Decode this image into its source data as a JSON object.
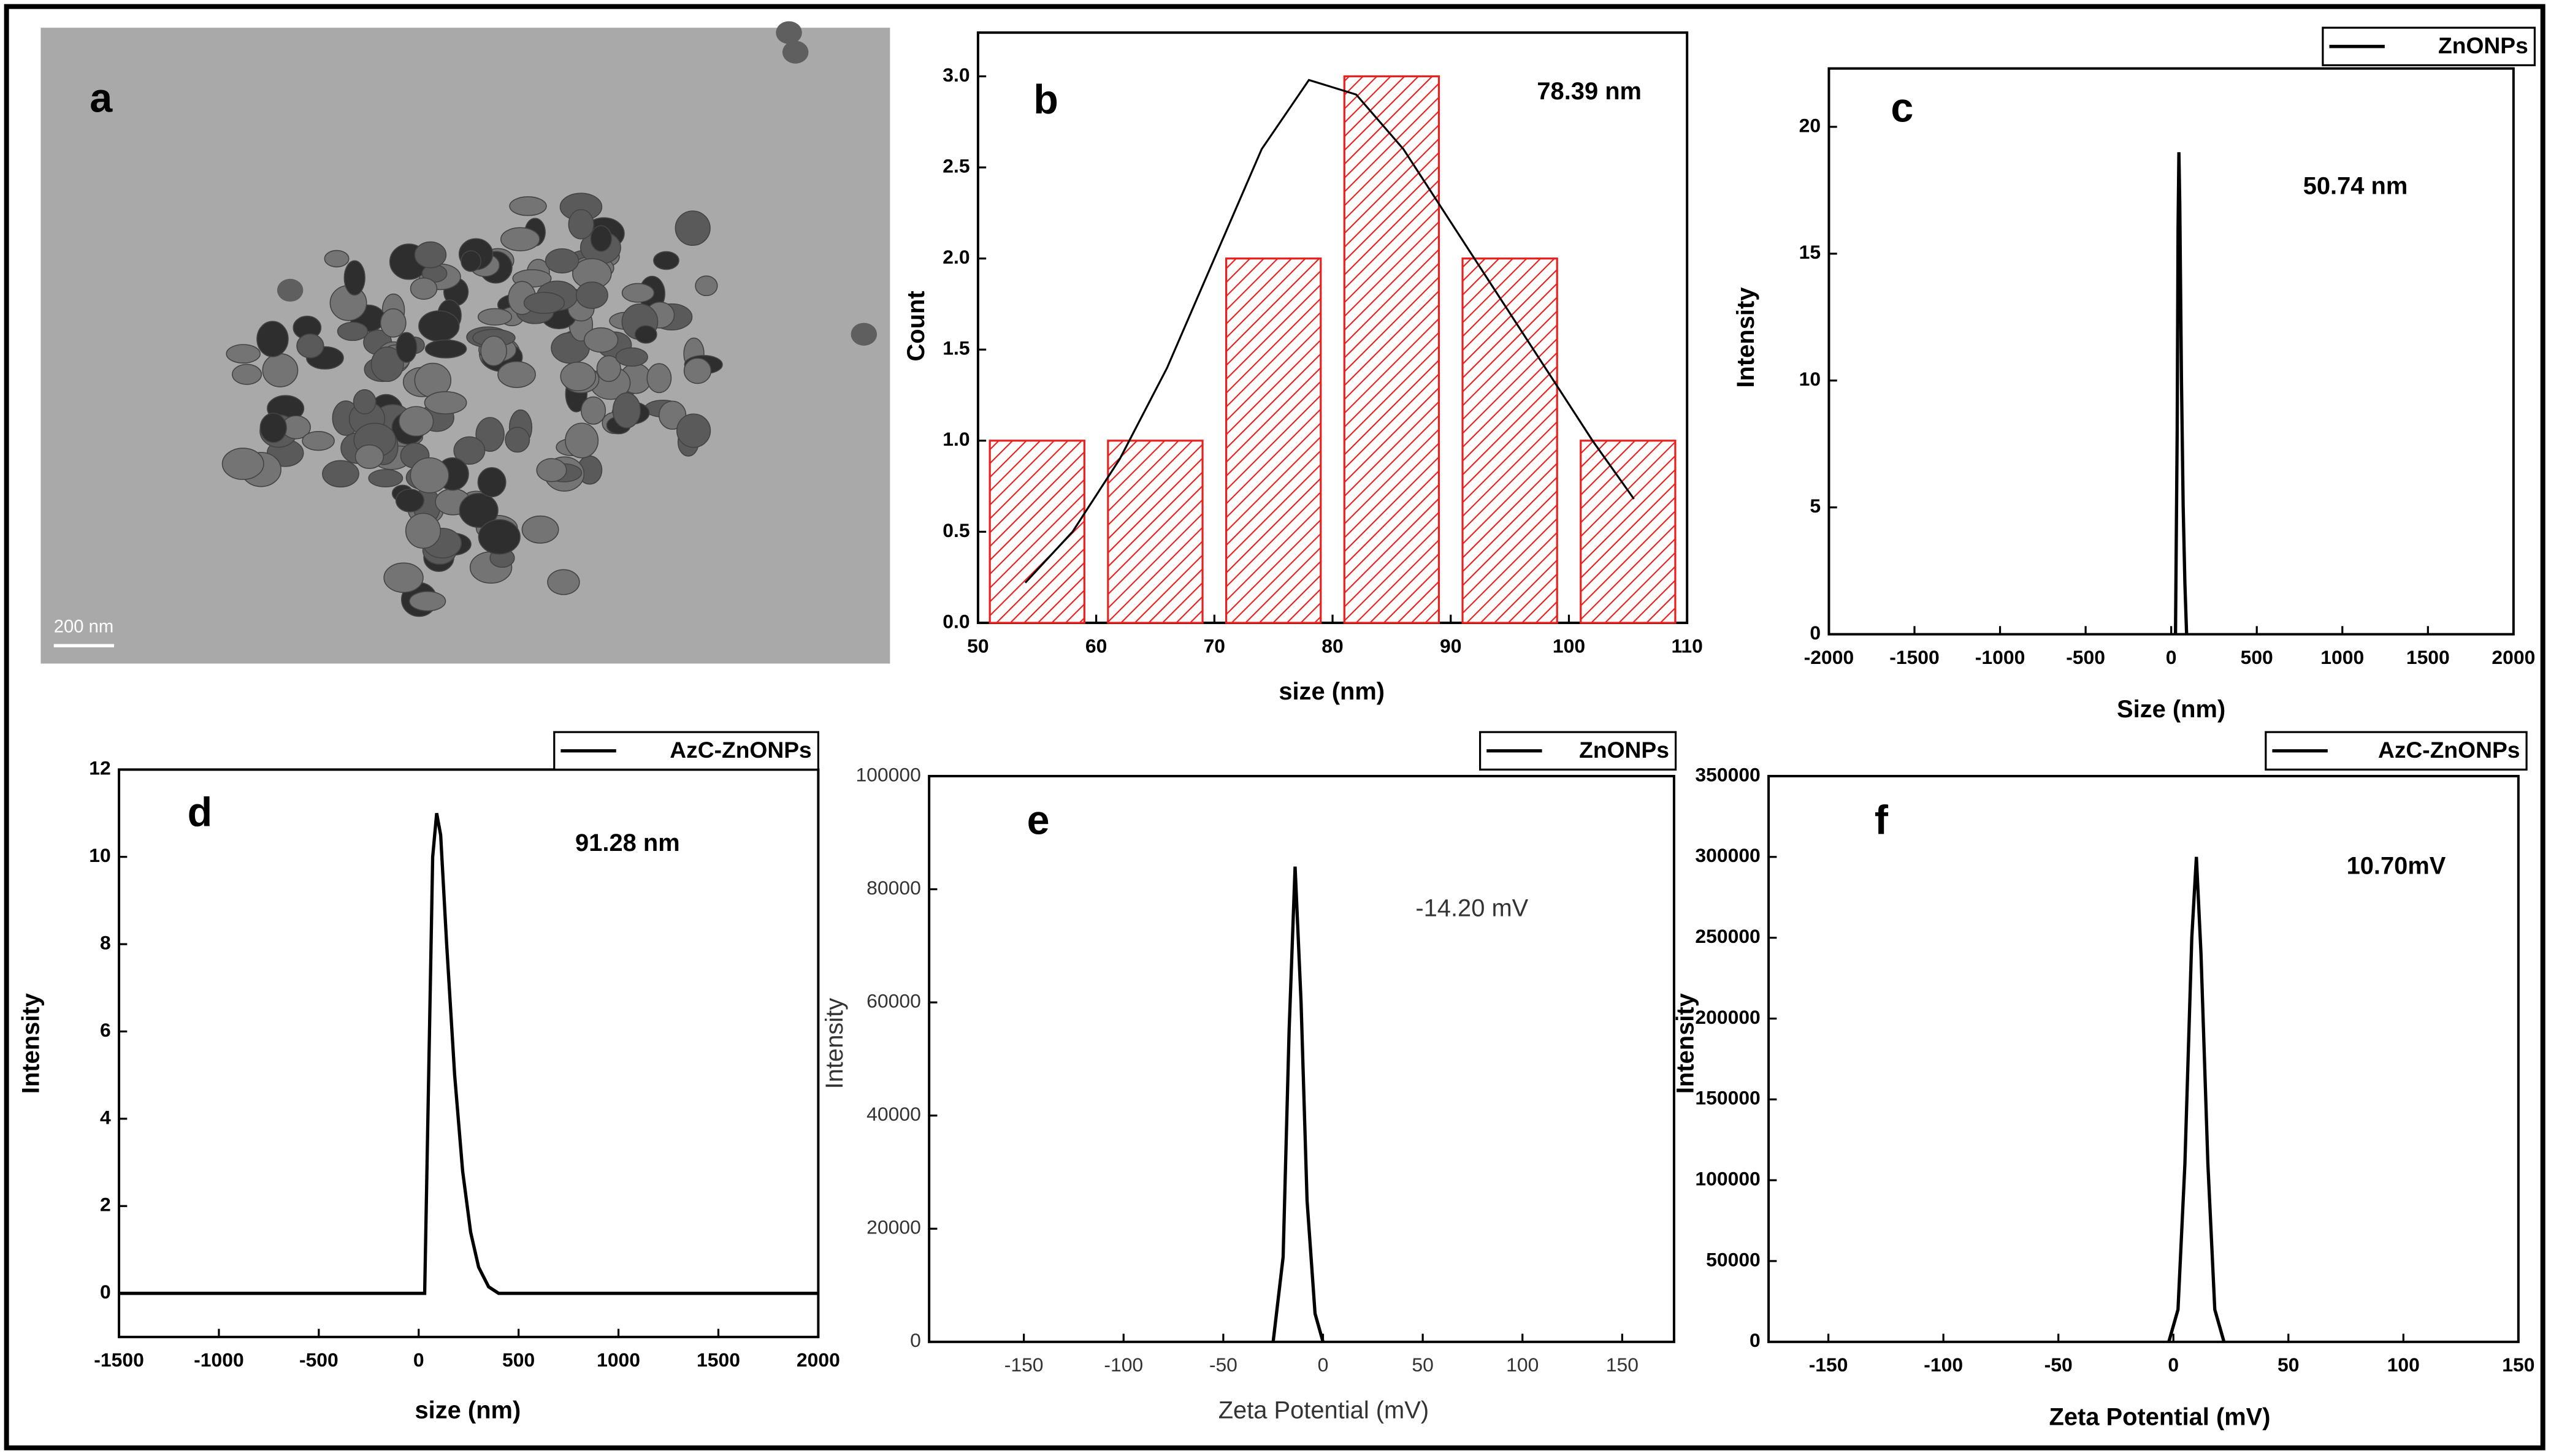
{
  "chart_data": [
    {
      "type": "image",
      "panel_label": "a",
      "scale_bar": "200 nm"
    },
    {
      "type": "histogram",
      "panel_label": "b",
      "annotation": "78.39 nm",
      "x_label": "size (nm)",
      "y_label": "Count",
      "bins": [
        50,
        60,
        70,
        80,
        90,
        100,
        110
      ],
      "values": [
        1,
        1,
        2,
        3,
        2,
        1
      ],
      "color": "#e8201e",
      "fit": {
        "x": [
          54,
          58,
          62,
          66,
          70,
          74,
          78,
          82,
          86,
          90,
          94,
          98,
          102,
          105.5
        ],
        "values": [
          0.22,
          0.5,
          0.9,
          1.4,
          2.0,
          2.6,
          2.98,
          2.9,
          2.6,
          2.2,
          1.8,
          1.4,
          1.0,
          0.68
        ],
        "color": "#000000"
      },
      "xlim": [
        50,
        110
      ],
      "ylim": [
        0,
        3.24
      ],
      "xticks": [
        50,
        60,
        70,
        80,
        90,
        100,
        110
      ],
      "yticks": [
        {
          "value": 0,
          "label": "0.0"
        },
        0.5,
        {
          "value": 1,
          "label": "1.0"
        },
        1.5,
        {
          "value": 2,
          "label": "2.0"
        },
        2.5,
        {
          "value": 3,
          "label": "3.0"
        }
      ]
    },
    {
      "type": "line",
      "panel_label": "c",
      "annotation": "50.74 nm",
      "x_label": "Size (nm)",
      "y_label": "Intensity",
      "x": [
        25,
        35,
        40,
        45,
        50,
        60,
        70,
        80,
        90
      ],
      "series": [
        {
          "name": "ZnONPs",
          "color": "#000000",
          "values": [
            0,
            8,
            16,
            19,
            17,
            10,
            5,
            2,
            0
          ]
        }
      ],
      "xlim": [
        -2000,
        2000
      ],
      "ylim": [
        0,
        22.3
      ],
      "xticks": [
        -2000,
        -1500,
        -1000,
        -500,
        0,
        500,
        1000,
        1500,
        2000
      ],
      "yticks": [
        0,
        5,
        10,
        15,
        20
      ]
    },
    {
      "type": "line",
      "panel_label": "d",
      "annotation": "91.28 nm",
      "x_label": "size (nm)",
      "y_label": "Intensity",
      "x": [
        -1500,
        30,
        50,
        70,
        90,
        110,
        140,
        180,
        220,
        260,
        300,
        350,
        400,
        2000
      ],
      "series": [
        {
          "name": "AzC-ZnONPs",
          "color": "#000000",
          "values": [
            0,
            0,
            5,
            10,
            11,
            10.5,
            8,
            5,
            2.8,
            1.4,
            0.6,
            0.15,
            0,
            0
          ]
        }
      ],
      "xlim": [
        -1500,
        2000
      ],
      "ylim": [
        -1,
        12
      ],
      "xticks": [
        -1500,
        -1000,
        -500,
        0,
        500,
        1000,
        1500,
        2000
      ],
      "yticks": [
        0,
        2,
        4,
        6,
        8,
        10,
        12
      ]
    },
    {
      "type": "line",
      "panel_label": "e",
      "annotation": "-14.20 mV",
      "x_label": "Zeta Potential (mV)",
      "y_label": "Intensity",
      "x": [
        -25,
        -20,
        -17,
        -14,
        -11,
        -8,
        -4,
        0
      ],
      "series": [
        {
          "name": "ZnONPs",
          "color": "#000000",
          "values": [
            0,
            15000,
            55000,
            84000,
            60000,
            25000,
            5000,
            0
          ]
        }
      ],
      "xlim": [
        -197.5,
        176
      ],
      "ylim": [
        0,
        100000
      ],
      "xticks": [
        -150,
        -100,
        -50,
        0,
        50,
        100,
        150
      ],
      "yticks": [
        0,
        20000,
        40000,
        60000,
        80000,
        100000
      ]
    },
    {
      "type": "line",
      "panel_label": "f",
      "annotation": "10.70mV",
      "x_label": "Zeta Potential (mV)",
      "y_label": "Intensity",
      "x": [
        -2,
        2,
        5,
        8,
        10,
        12,
        15,
        18,
        22
      ],
      "series": [
        {
          "name": "AzC-ZnONPs",
          "color": "#000000",
          "values": [
            0,
            20000,
            110000,
            250000,
            300000,
            240000,
            110000,
            20000,
            0
          ]
        }
      ],
      "xlim": [
        -176,
        150
      ],
      "ylim": [
        0,
        350000
      ],
      "xticks": [
        -150,
        -100,
        -50,
        0,
        50,
        100,
        150
      ],
      "yticks": [
        0,
        50000,
        100000,
        150000,
        200000,
        250000,
        300000,
        350000
      ]
    }
  ]
}
